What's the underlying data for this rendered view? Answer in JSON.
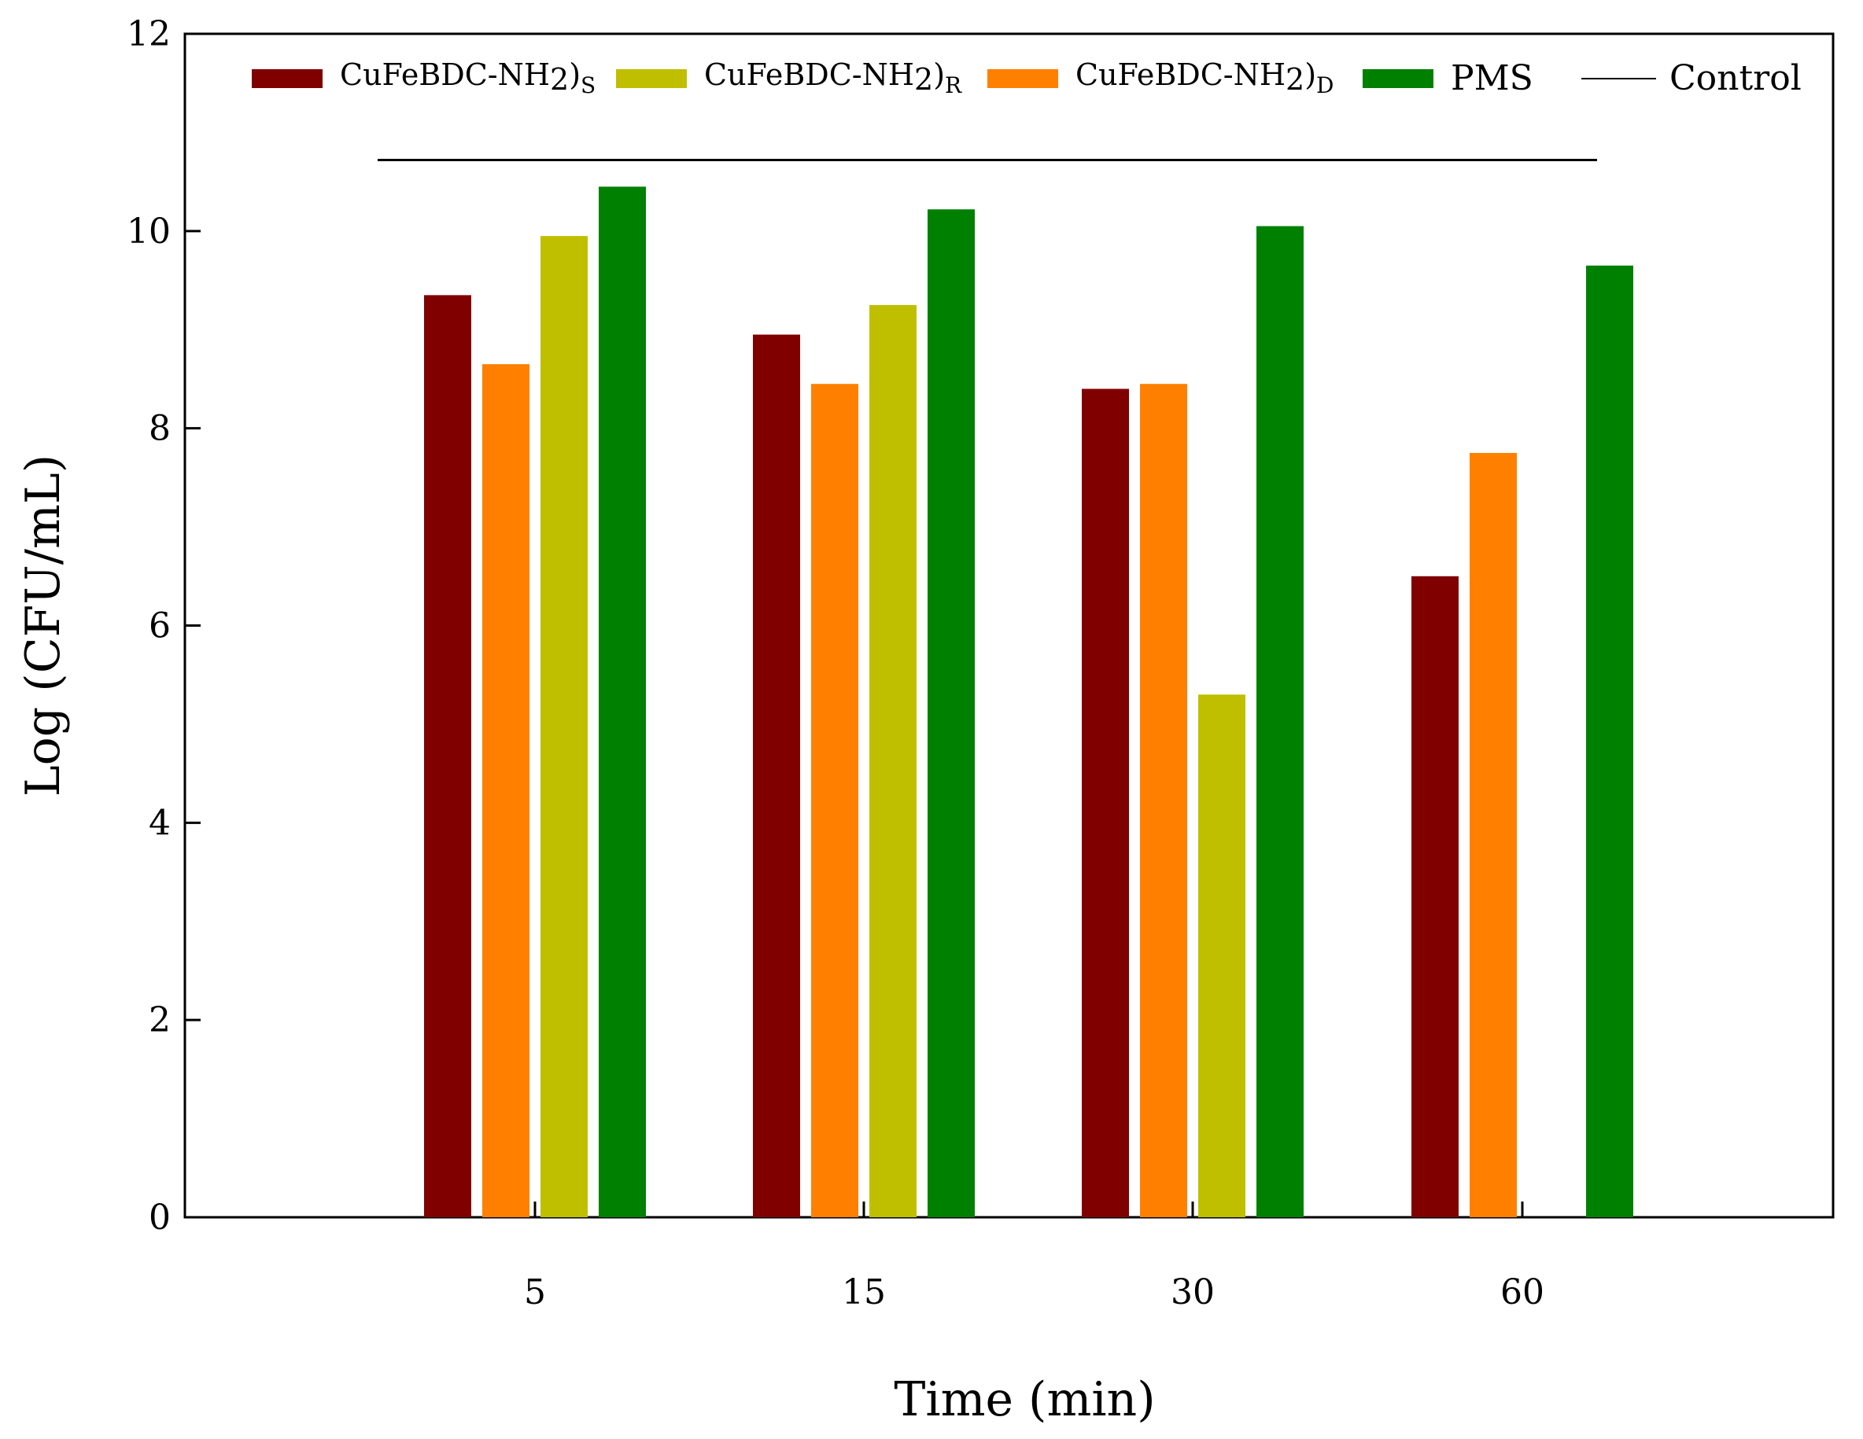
{
  "chart_data": {
    "type": "bar",
    "title": "",
    "xlabel": "Time (min)",
    "ylabel": "Log (CFU/mL)",
    "ylim": [
      0,
      12
    ],
    "yticks": [
      "0",
      "2",
      "4",
      "6",
      "8",
      "10",
      "12"
    ],
    "categories": [
      "5",
      "15",
      "30",
      "60"
    ],
    "series": [
      {
        "name": "CuFeBDC-NH2)S",
        "label_main": "CuFeBDC-NH",
        "label_sub1": "2",
        "label_mid": ")",
        "label_sub2": "S",
        "color": "#800000",
        "values": [
          9.35,
          8.95,
          8.4,
          6.5
        ]
      },
      {
        "name": "CuFeBDC-NH2)D",
        "label_main": "CuFeBDC-NH",
        "label_sub1": "2",
        "label_mid": ")",
        "label_sub2": "D",
        "color": "#ff8000",
        "values": [
          8.65,
          8.45,
          8.45,
          7.75
        ]
      },
      {
        "name": "CuFeBDC-NH2)R",
        "label_main": "CuFeBDC-NH",
        "label_sub1": "2",
        "label_mid": ")",
        "label_sub2": "R",
        "color": "#bfbf00",
        "values": [
          9.95,
          9.25,
          5.3,
          0
        ]
      },
      {
        "name": "PMS",
        "label_main": "PMS",
        "color": "#008000",
        "values": [
          10.45,
          10.22,
          10.05,
          9.65
        ]
      }
    ],
    "control": {
      "name": "Control",
      "value": 10.72
    },
    "legend_order": [
      "CuFeBDC-NH2)S",
      "CuFeBDC-NH2)R",
      "CuFeBDC-NH2)D",
      "PMS",
      "Control"
    ],
    "legend_position": "top",
    "grid": false
  }
}
